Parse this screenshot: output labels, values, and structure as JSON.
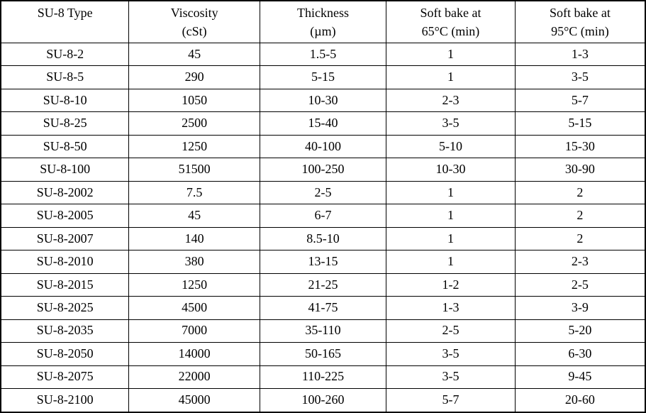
{
  "table": {
    "columns": [
      {
        "line1": "SU-8 Type",
        "line2": ""
      },
      {
        "line1": "Viscosity",
        "line2": "(cSt)"
      },
      {
        "line1": "Thickness",
        "line2": "(µm)"
      },
      {
        "line1": "Soft bake at",
        "line2": "65°C (min)"
      },
      {
        "line1": "Soft bake at",
        "line2": "95°C (min)"
      }
    ],
    "rows": [
      {
        "cells": [
          "SU-8-2",
          "45",
          "1.5-5",
          "1",
          "1-3"
        ]
      },
      {
        "cells": [
          "SU-8-5",
          "290",
          "5-15",
          "1",
          "3-5"
        ]
      },
      {
        "cells": [
          "SU-8-10",
          "1050",
          "10-30",
          "2-3",
          "5-7"
        ]
      },
      {
        "cells": [
          "SU-8-25",
          "2500",
          "15-40",
          "3-5",
          "5-15"
        ]
      },
      {
        "cells": [
          "SU-8-50",
          "1250",
          "40-100",
          "5-10",
          "15-30"
        ]
      },
      {
        "cells": [
          "SU-8-100",
          "51500",
          "100-250",
          "10-30",
          "30-90"
        ]
      },
      {
        "cells": [
          "SU-8-2002",
          "7.5",
          "2-5",
          "1",
          "2"
        ]
      },
      {
        "cells": [
          "SU-8-2005",
          "45",
          "6-7",
          "1",
          "2"
        ]
      },
      {
        "cells": [
          "SU-8-2007",
          "140",
          "8.5-10",
          "1",
          "2"
        ]
      },
      {
        "cells": [
          "SU-8-2010",
          "380",
          "13-15",
          "1",
          "2-3"
        ]
      },
      {
        "cells": [
          "SU-8-2015",
          "1250",
          "21-25",
          "1-2",
          "2-5"
        ]
      },
      {
        "cells": [
          "SU-8-2025",
          "4500",
          "41-75",
          "1-3",
          "3-9"
        ]
      },
      {
        "cells": [
          "SU-8-2035",
          "7000",
          "35-110",
          "2-5",
          "5-20"
        ]
      },
      {
        "cells": [
          "SU-8-2050",
          "14000",
          "50-165",
          "3-5",
          "6-30"
        ]
      },
      {
        "cells": [
          "SU-8-2075",
          "22000",
          "110-225",
          "3-5",
          "9-45"
        ]
      },
      {
        "cells": [
          "SU-8-2100",
          "45000",
          "100-260",
          "5-7",
          "20-60"
        ]
      }
    ]
  },
  "colors": {
    "border": "#000000",
    "background": "#ffffff",
    "text": "#000000"
  }
}
